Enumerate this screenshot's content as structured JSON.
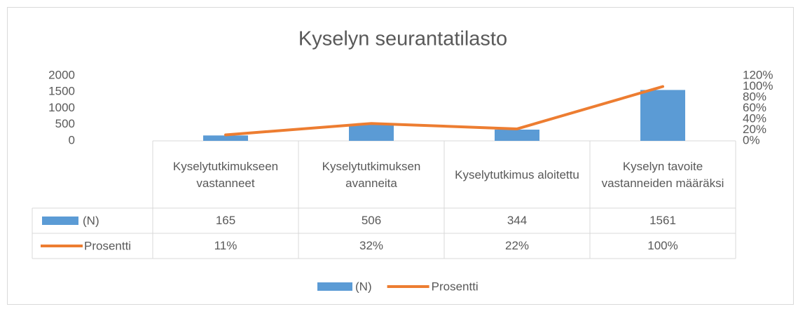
{
  "chart_data": {
    "type": "bar",
    "title": "Kyselyn seurantatilasto",
    "categories": [
      "Kyselytutkimukseen vastanneet",
      "Kyselytutkimuksen avanneita",
      "Kyselytutkimus aloitettu",
      "Kyselyn tavoite vastanneiden määräksi"
    ],
    "series": [
      {
        "name": "(N)",
        "type": "bar",
        "color": "#5b9bd5",
        "values": [
          165,
          506,
          344,
          1561
        ]
      },
      {
        "name": "Prosentti",
        "type": "line",
        "axis": "y2",
        "color": "#ed7d31",
        "values": [
          11,
          32,
          22,
          100
        ],
        "value_labels": [
          "11%",
          "32%",
          "22%",
          "100%"
        ]
      }
    ],
    "ylim": [
      0,
      2000
    ],
    "yticks": [
      0,
      500,
      1000,
      1500,
      2000
    ],
    "y2lim": [
      0,
      120
    ],
    "y2ticks": [
      {
        "value": 0,
        "label": "0%"
      },
      {
        "value": 20,
        "label": "20%"
      },
      {
        "value": 40,
        "label": "40%"
      },
      {
        "value": 60,
        "label": "60%"
      },
      {
        "value": 80,
        "label": "80%"
      },
      {
        "value": 100,
        "label": "100%"
      },
      {
        "value": 120,
        "label": "120%"
      }
    ],
    "legend": "bottom",
    "data_table": true
  }
}
